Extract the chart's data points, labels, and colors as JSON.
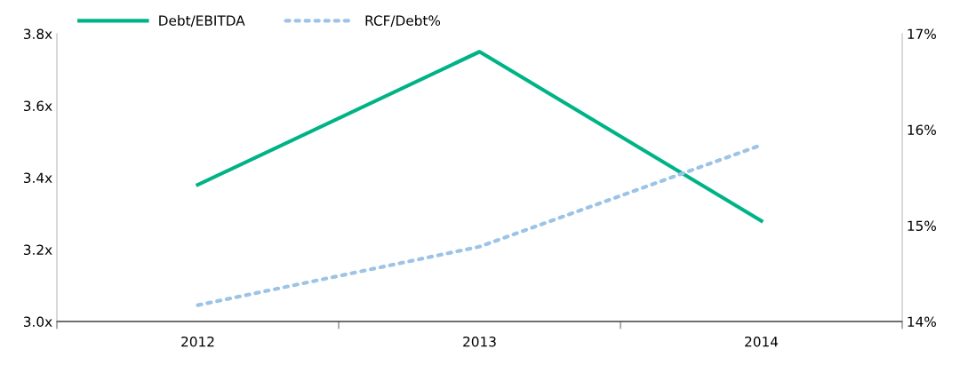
{
  "chart_data": {
    "type": "line",
    "categories": [
      "2012",
      "2013",
      "2014"
    ],
    "series": [
      {
        "name": "Debt/EBITDA",
        "color": "#00b386",
        "values": [
          3.38,
          3.75,
          3.28
        ],
        "line_style": "solid"
      },
      {
        "name": "RCF/Debt%",
        "color": "#9dc3e6",
        "values": [
          14.17,
          14.78,
          15.84
        ],
        "axis": "y2",
        "line_style": "dotted"
      }
    ],
    "ylim": [
      3.0,
      3.8
    ],
    "yticks": [
      {
        "value": 3.0,
        "label": "3.0x"
      },
      {
        "value": 3.2,
        "label": "3.2x"
      },
      {
        "value": 3.4,
        "label": "3.4x"
      },
      {
        "value": 3.6,
        "label": "3.6x"
      },
      {
        "value": 3.8,
        "label": "3.8x"
      }
    ],
    "y2lim": [
      14,
      17
    ],
    "y2ticks": [
      {
        "value": 14,
        "label": "14%"
      },
      {
        "value": 15,
        "label": "15%"
      },
      {
        "value": 16,
        "label": "16%"
      },
      {
        "value": 17,
        "label": "17%"
      }
    ],
    "grid": false,
    "legend": "top left",
    "marker": "none"
  }
}
